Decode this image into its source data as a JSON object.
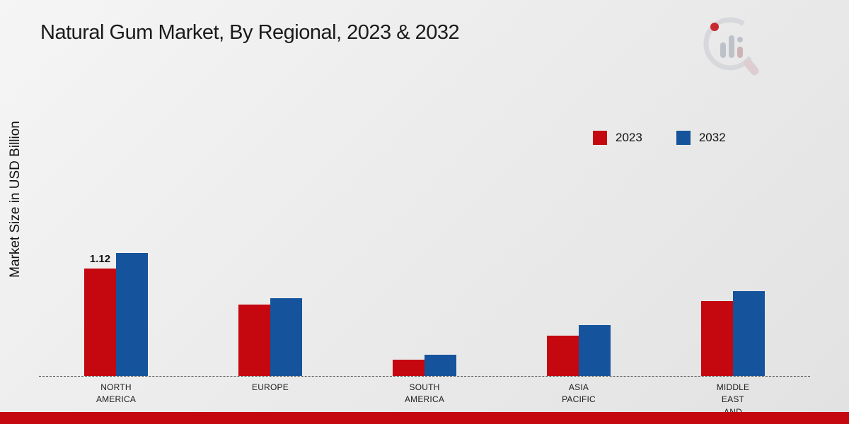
{
  "page": {
    "title": "Natural Gum Market, By Regional, 2023 & 2032",
    "y_axis_label": "Market Size in USD Billion"
  },
  "legend": [
    {
      "label": "2023",
      "color": "#c5070f"
    },
    {
      "label": "2032",
      "color": "#15549c"
    }
  ],
  "chart_data": {
    "type": "bar",
    "title": "Natural Gum Market, By Regional, 2023 & 2032",
    "ylabel": "Market Size in USD Billion",
    "xlabel": "",
    "ylim": [
      0,
      1.4
    ],
    "grid": false,
    "legend_position": "right-upper",
    "baseline_style": "dashed",
    "categories": [
      "NORTH AMERICA",
      "EUROPE",
      "SOUTH AMERICA",
      "ASIA PACIFIC",
      "MIDDLE EAST AND"
    ],
    "category_lines": [
      [
        "NORTH",
        "AMERICA"
      ],
      [
        "EUROPE"
      ],
      [
        "SOUTH",
        "AMERICA"
      ],
      [
        "ASIA",
        "PACIFIC"
      ],
      [
        "MIDDLE",
        "EAST",
        "AND"
      ]
    ],
    "series": [
      {
        "name": "2023",
        "color": "#c5070f",
        "values": [
          1.12,
          0.74,
          0.17,
          0.42,
          0.78
        ]
      },
      {
        "name": "2032",
        "color": "#15549c",
        "values": [
          1.28,
          0.81,
          0.22,
          0.53,
          0.88
        ]
      }
    ],
    "bar_labels": [
      {
        "category_index": 0,
        "series_index": 0,
        "text": "1.12"
      }
    ]
  },
  "colors": {
    "footer_bar": "#c5070f",
    "background_top": "#f5f5f5",
    "background_bottom": "#e2e2e2"
  }
}
